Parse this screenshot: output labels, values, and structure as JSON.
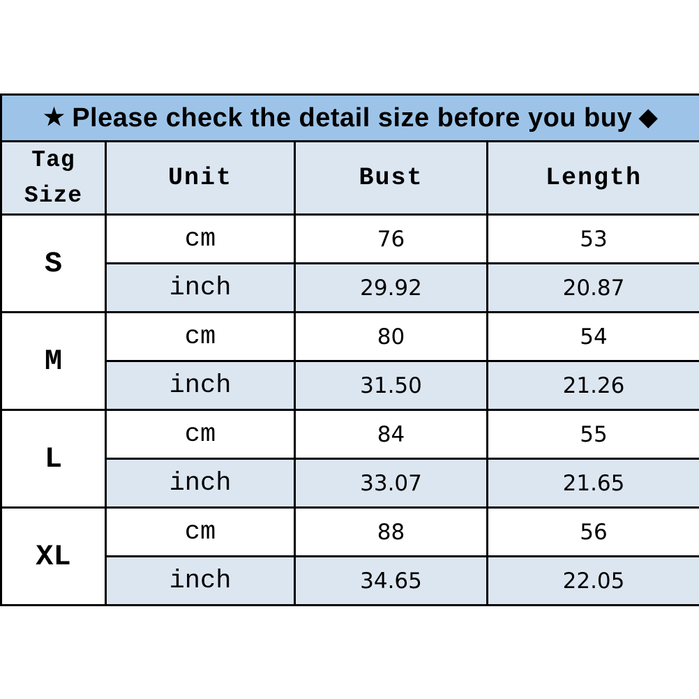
{
  "banner": {
    "star": "★",
    "text": "Please check the detail size before you buy",
    "diamond": "◆"
  },
  "header": {
    "tag_line1": "Tag",
    "tag_line2": "Size",
    "unit": "Unit",
    "bust": "Bust",
    "length": "Length"
  },
  "sizes": [
    {
      "label": "S",
      "cm": {
        "unit": "cm",
        "bust": "76",
        "length": "53"
      },
      "inch": {
        "unit": "inch",
        "bust": "29.92",
        "length": "20.87"
      }
    },
    {
      "label": "M",
      "cm": {
        "unit": "cm",
        "bust": "80",
        "length": "54"
      },
      "inch": {
        "unit": "inch",
        "bust": "31.50",
        "length": "21.26"
      }
    },
    {
      "label": "L",
      "cm": {
        "unit": "cm",
        "bust": "84",
        "length": "55"
      },
      "inch": {
        "unit": "inch",
        "bust": "33.07",
        "length": "21.65"
      }
    },
    {
      "label": "XL",
      "cm": {
        "unit": "cm",
        "bust": "88",
        "length": "56"
      },
      "inch": {
        "unit": "inch",
        "bust": "34.65",
        "length": "22.05"
      }
    }
  ],
  "colors": {
    "banner_bg": "#9dc4e8",
    "accent_row_bg": "#dce6f1",
    "border": "#000000",
    "text": "#000000",
    "page_bg": "#ffffff"
  },
  "chart_data": {
    "type": "table",
    "title": "Please check the detail size before you buy",
    "columns": [
      "Tag Size",
      "Unit",
      "Bust",
      "Length"
    ],
    "rows": [
      [
        "S",
        "cm",
        76,
        53
      ],
      [
        "S",
        "inch",
        29.92,
        20.87
      ],
      [
        "M",
        "cm",
        80,
        54
      ],
      [
        "M",
        "inch",
        31.5,
        21.26
      ],
      [
        "L",
        "cm",
        84,
        55
      ],
      [
        "L",
        "inch",
        33.07,
        21.65
      ],
      [
        "XL",
        "cm",
        88,
        56
      ],
      [
        "XL",
        "inch",
        34.65,
        22.05
      ]
    ]
  }
}
